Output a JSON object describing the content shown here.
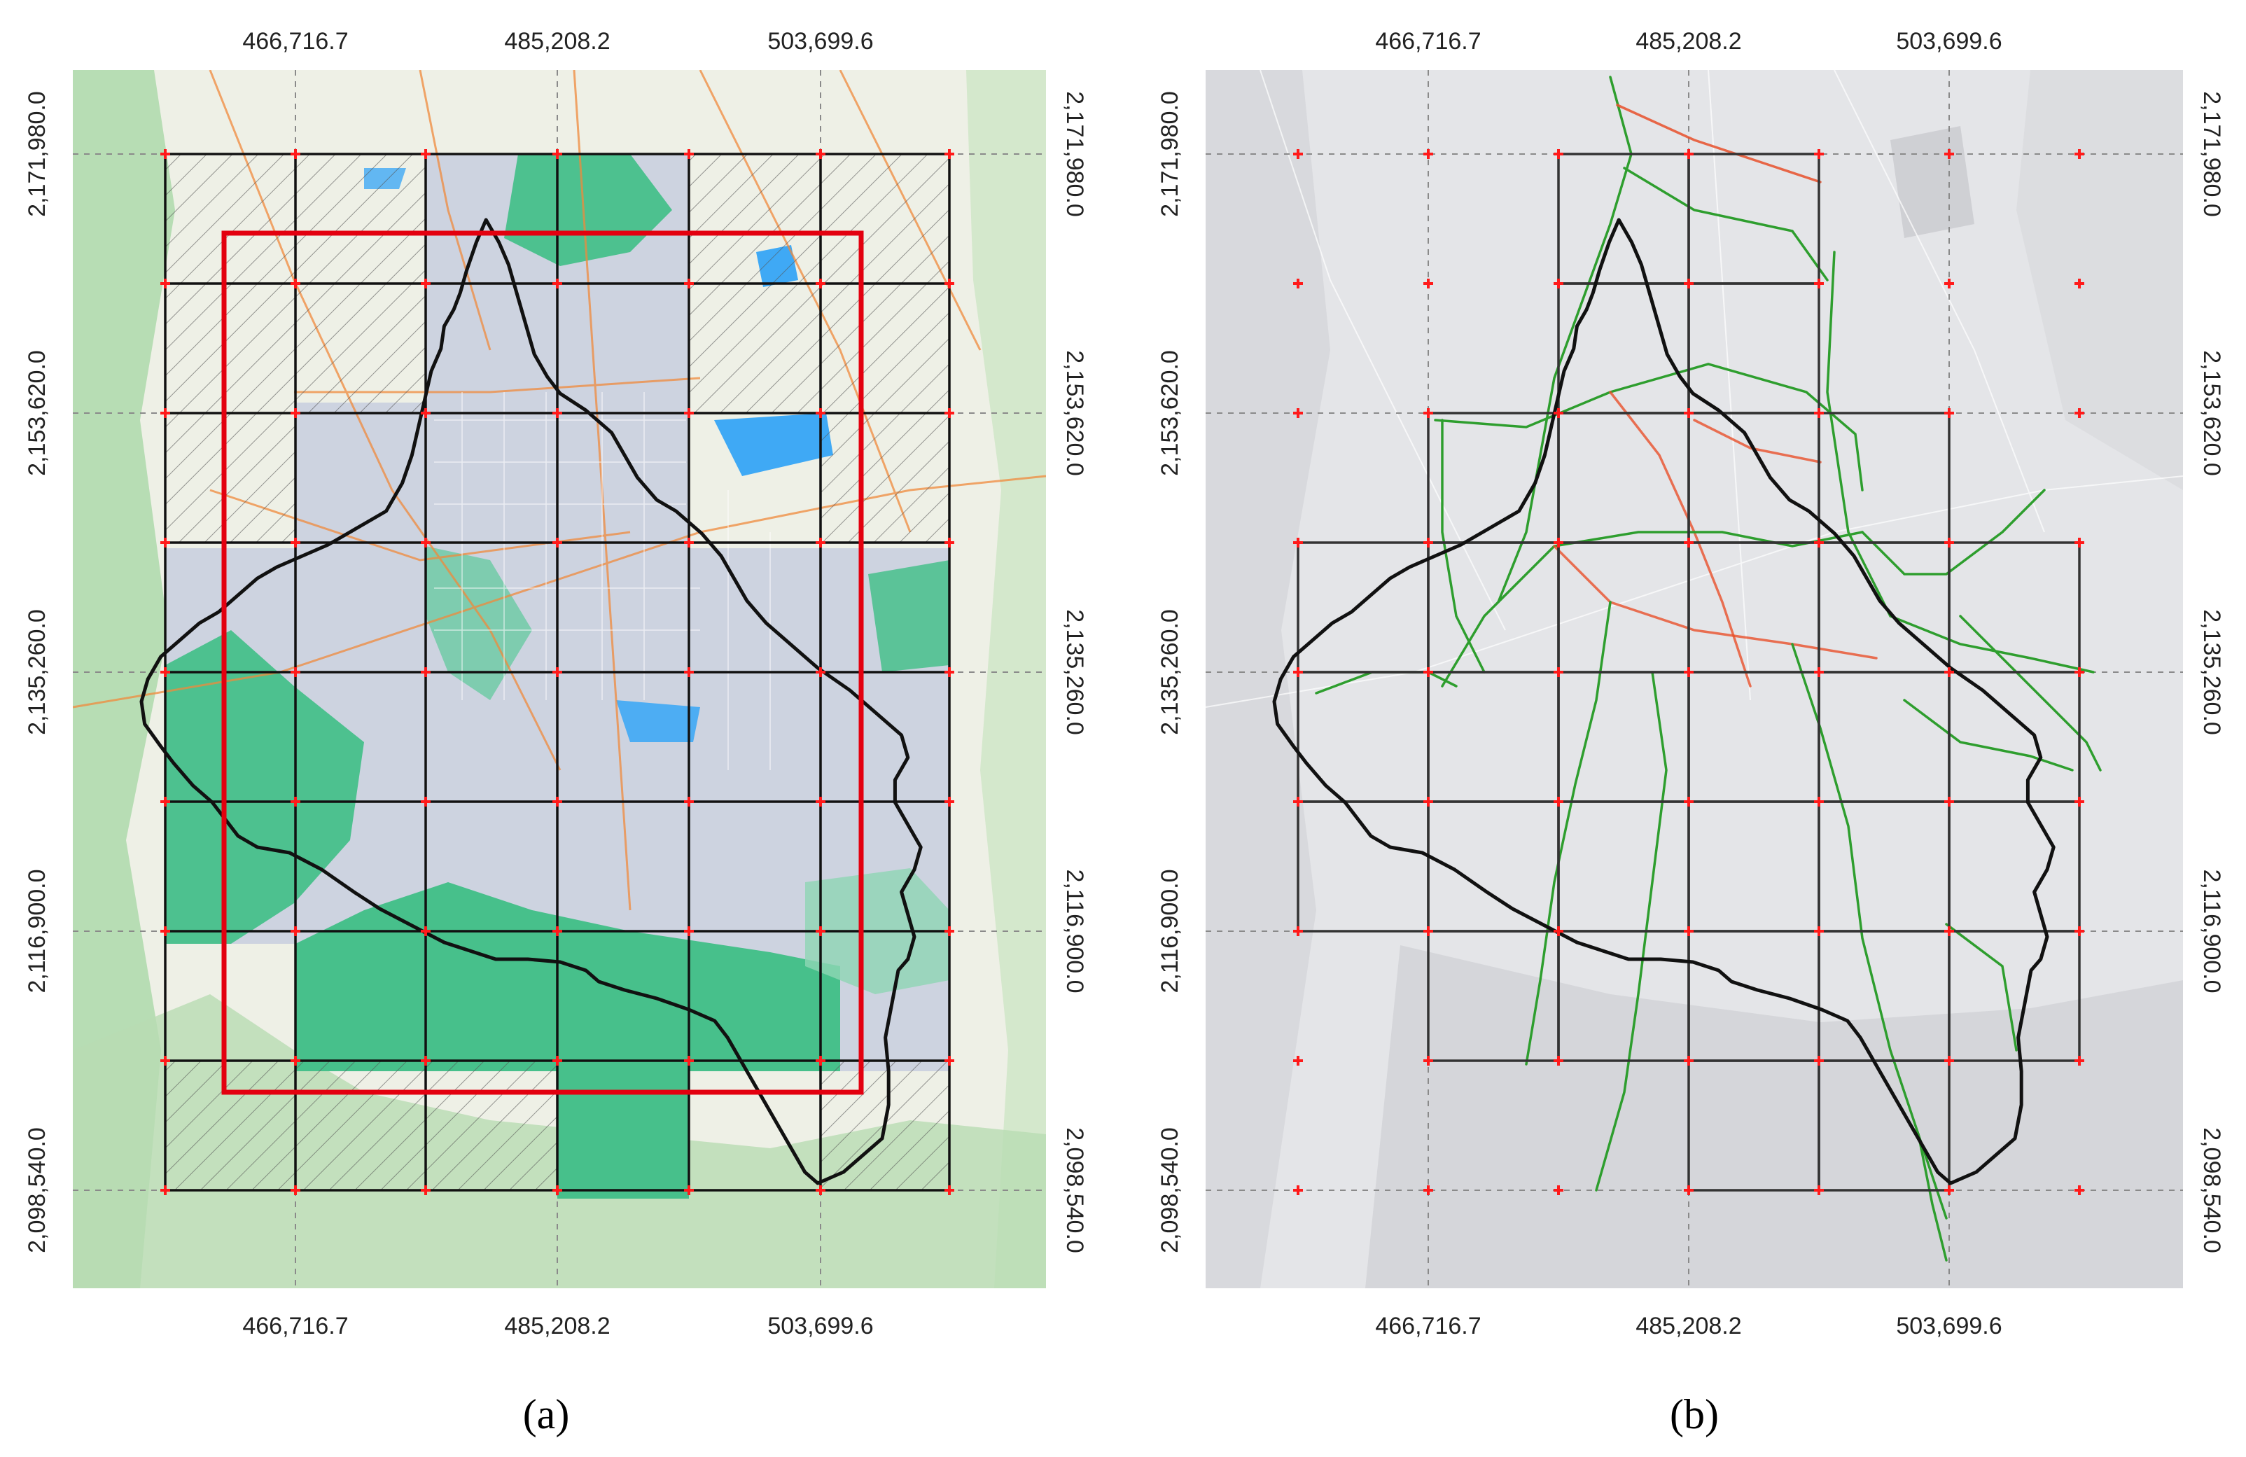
{
  "figure": {
    "x_ticks": [
      "466,716.7",
      "485,208.2",
      "503,699.6"
    ],
    "y_ticks": [
      "2,171,980.0",
      "2,153,620.0",
      "2,135,260.0",
      "2,116,900.0",
      "2,098,540.0"
    ],
    "panels": [
      {
        "id": "a",
        "caption": "(a)",
        "basemap": "topographic",
        "basemap_colors": {
          "background": "#eef0e6",
          "vegetation": "#3fbf86",
          "urban": "#cdd3e0",
          "water": "#3fa9f5",
          "roads": "#f08a3c"
        },
        "region_outline_color": "#111111",
        "bounding_box_color": "#e3000f",
        "grid_line_color": "#111111",
        "grid_marker_color": "#ff1a1a",
        "hatched_cells": "outside region"
      },
      {
        "id": "b",
        "caption": "(b)",
        "basemap": "light gray",
        "basemap_colors": {
          "background": "#e4e5e8",
          "roads_fast": "#2e9e2e",
          "roads_slow": "#e8502a"
        },
        "region_outline_color": "#111111",
        "grid_line_color": "#333333",
        "grid_marker_color": "#ff1a1a",
        "cells_drawn": "cells with road data"
      }
    ]
  }
}
